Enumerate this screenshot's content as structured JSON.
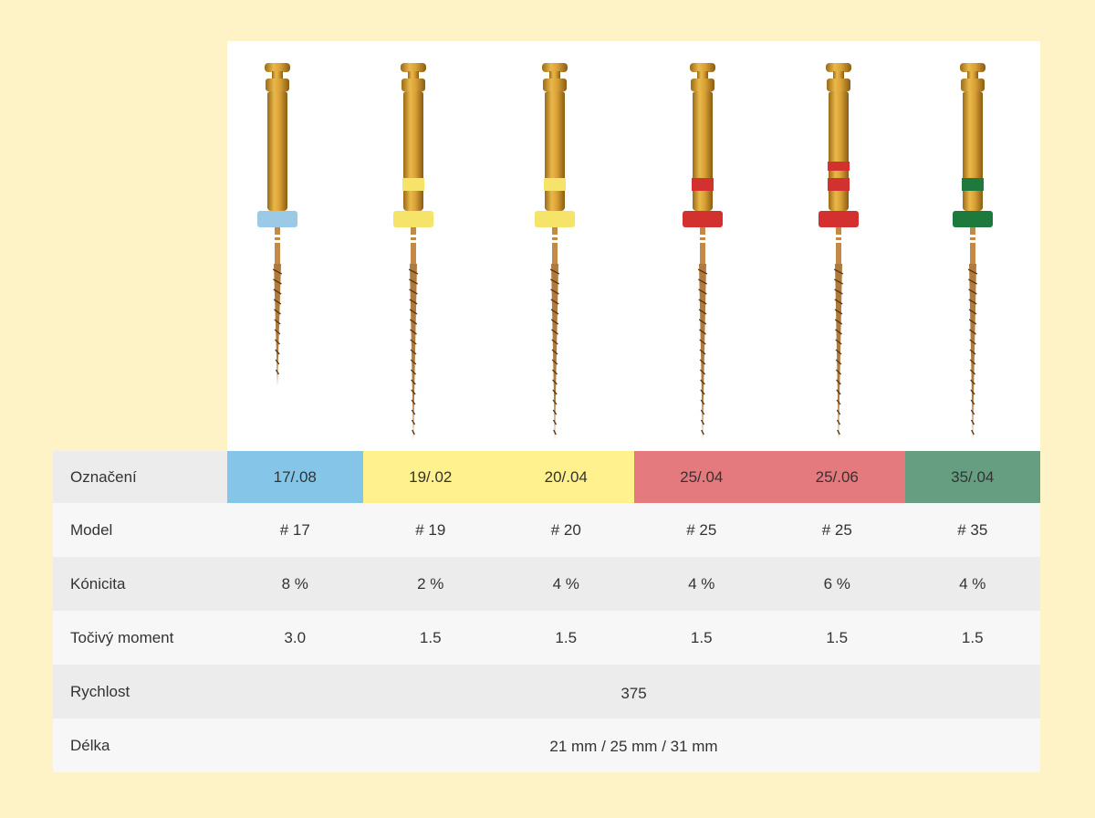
{
  "colors": {
    "background": "#fdf3c6",
    "blue": "#85c6e8",
    "yellow": "#fff28e",
    "red": "#e47a7e",
    "green": "#669e81",
    "shaft": "#c8922e",
    "ring_blue": "#9cc9e6",
    "ring_yellow": "#f5e36a",
    "ring_red": "#d3312f",
    "ring_green": "#1e7a3c"
  },
  "files": [
    {
      "stopper": "ring_blue",
      "bands": 0,
      "band": "",
      "tip_length": "short"
    },
    {
      "stopper": "ring_yellow",
      "bands": 1,
      "band": "ring_yellow",
      "tip_length": "long"
    },
    {
      "stopper": "ring_yellow",
      "bands": 1,
      "band": "ring_yellow",
      "tip_length": "long"
    },
    {
      "stopper": "ring_red",
      "bands": 1,
      "band": "ring_red",
      "tip_length": "long"
    },
    {
      "stopper": "ring_red",
      "bands": 2,
      "band": "ring_red",
      "tip_length": "long"
    },
    {
      "stopper": "ring_green",
      "bands": 1,
      "band": "ring_green",
      "tip_length": "long"
    }
  ],
  "table": {
    "labels": {
      "designation": "Označení",
      "model": "Model",
      "taper": "Kónicita",
      "torque": "Točivý moment",
      "speed": "Rychlost",
      "length": "Délka"
    },
    "designations": [
      {
        "text": "17/.08",
        "bg": "#85c6e8"
      },
      {
        "text": "19/.02",
        "bg": "#fff28e"
      },
      {
        "text": "20/.04",
        "bg": "#fff28e"
      },
      {
        "text": "25/.04",
        "bg": "#e47a7e"
      },
      {
        "text": "25/.06",
        "bg": "#e47a7e"
      },
      {
        "text": "35/.04",
        "bg": "#669e81"
      }
    ],
    "models": [
      "# 17",
      "# 19",
      "# 20",
      "# 25",
      "# 25",
      "# 35"
    ],
    "tapers": [
      "8 %",
      "2 %",
      "4 %",
      "4 %",
      "6 %",
      "4 %"
    ],
    "torques": [
      "3.0",
      "1.5",
      "1.5",
      "1.5",
      "1.5",
      "1.5"
    ],
    "speed": "375",
    "length": "21 mm / 25 mm / 31 mm"
  }
}
